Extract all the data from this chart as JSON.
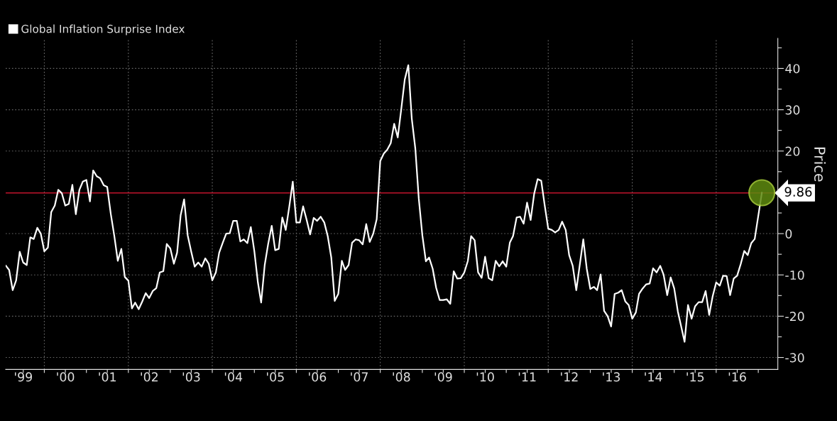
{
  "chart_data": {
    "type": "line",
    "x": [
      "1999-02",
      "1999-03",
      "1999-04",
      "1999-05",
      "1999-06",
      "1999-07",
      "1999-08",
      "1999-09",
      "1999-10",
      "1999-11",
      "1999-12",
      "2000-01",
      "2000-02",
      "2000-03",
      "2000-04",
      "2000-05",
      "2000-06",
      "2000-07",
      "2000-08",
      "2000-09",
      "2000-10",
      "2000-11",
      "2000-12",
      "2001-01",
      "2001-02",
      "2001-03",
      "2001-04",
      "2001-05",
      "2001-06",
      "2001-07",
      "2001-08",
      "2001-09",
      "2001-10",
      "2001-11",
      "2001-12",
      "2002-01",
      "2002-02",
      "2002-03",
      "2002-04",
      "2002-05",
      "2002-06",
      "2002-07",
      "2002-08",
      "2002-09",
      "2002-10",
      "2002-11",
      "2002-12",
      "2003-01",
      "2003-02",
      "2003-03",
      "2003-04",
      "2003-05",
      "2003-06",
      "2003-07",
      "2003-08",
      "2003-09",
      "2003-10",
      "2003-11",
      "2003-12",
      "2004-01",
      "2004-02",
      "2004-03",
      "2004-04",
      "2004-05",
      "2004-06",
      "2004-07",
      "2004-08",
      "2004-09",
      "2004-10",
      "2004-11",
      "2004-12",
      "2005-01",
      "2005-02",
      "2005-03",
      "2005-04",
      "2005-05",
      "2005-06",
      "2005-07",
      "2005-08",
      "2005-09",
      "2005-10",
      "2005-11",
      "2005-12",
      "2006-01",
      "2006-02",
      "2006-03",
      "2006-04",
      "2006-05",
      "2006-06",
      "2006-07",
      "2006-08",
      "2006-09",
      "2006-10",
      "2006-11",
      "2006-12",
      "2007-01",
      "2007-02",
      "2007-03",
      "2007-04",
      "2007-05",
      "2007-06",
      "2007-07",
      "2007-08",
      "2007-09",
      "2007-10",
      "2007-11",
      "2007-12",
      "2008-01",
      "2008-02",
      "2008-03",
      "2008-04",
      "2008-05",
      "2008-06",
      "2008-07",
      "2008-08",
      "2008-09",
      "2008-10",
      "2008-11",
      "2008-12",
      "2009-01",
      "2009-02",
      "2009-03",
      "2009-04",
      "2009-05",
      "2009-06",
      "2009-07",
      "2009-08",
      "2009-09",
      "2009-10",
      "2009-11",
      "2009-12",
      "2010-01",
      "2010-02",
      "2010-03",
      "2010-04",
      "2010-05",
      "2010-06",
      "2010-07",
      "2010-08",
      "2010-09",
      "2010-10",
      "2010-11",
      "2010-12",
      "2011-01",
      "2011-02",
      "2011-03",
      "2011-04",
      "2011-05",
      "2011-06",
      "2011-07",
      "2011-08",
      "2011-09",
      "2011-10",
      "2011-11",
      "2011-12",
      "2012-01",
      "2012-02",
      "2012-03",
      "2012-04",
      "2012-05",
      "2012-06",
      "2012-07",
      "2012-08",
      "2012-09",
      "2012-11",
      "2012-12",
      "2013-01",
      "2013-02",
      "2013-03",
      "2013-04",
      "2013-05",
      "2013-06",
      "2013-07",
      "2013-08",
      "2013-09",
      "2013-10",
      "2013-11",
      "2013-12",
      "2014-01",
      "2014-02",
      "2014-03",
      "2014-04",
      "2014-05",
      "2014-06",
      "2014-07",
      "2014-08",
      "2014-09",
      "2014-10",
      "2014-11",
      "2014-12",
      "2015-01",
      "2015-02",
      "2015-04",
      "2015-05",
      "2015-06",
      "2015-07",
      "2015-08",
      "2015-09",
      "2015-10",
      "2015-11",
      "2015-12",
      "2016-01",
      "2016-02",
      "2016-03",
      "2016-04",
      "2016-05",
      "2016-06",
      "2016-07",
      "2016-08",
      "2016-09",
      "2016-10",
      "2016-11",
      "2016-12",
      "2017-02"
    ],
    "series": [
      {
        "name": "Global Inflation Surprise Index",
        "color": "#ffffff",
        "values": [
          -7.8,
          -8.8,
          -13.7,
          -11.3,
          -4.4,
          -7.0,
          -7.6,
          -0.9,
          -1.3,
          1.4,
          0,
          -4.3,
          -3.4,
          5.2,
          6.8,
          10.6,
          9.8,
          6.8,
          7.2,
          11.8,
          4.7,
          10.6,
          12.6,
          13.0,
          7.8,
          15.3,
          13.9,
          13.4,
          11.7,
          11.3,
          4.8,
          -0.6,
          -6.6,
          -3.7,
          -10.5,
          -11.4,
          -18.1,
          -16.7,
          -18.3,
          -16.5,
          -14.4,
          -15.6,
          -13.9,
          -13.2,
          -9.4,
          -9.1,
          -2.5,
          -3.6,
          -7.3,
          -4.6,
          4.5,
          8.3,
          -0.4,
          -4.3,
          -8.0,
          -7.0,
          -8.0,
          -6.0,
          -7.3,
          -11.3,
          -9.4,
          -4.6,
          -2.2,
          0,
          0.1,
          3.1,
          3.1,
          -1.9,
          -1.4,
          -2.3,
          1.6,
          -4.3,
          -11.9,
          -16.7,
          -7.6,
          -2.5,
          1.9,
          -4.0,
          -3.7,
          3.9,
          0.9,
          6.6,
          12.6,
          2.7,
          2.7,
          6.6,
          3.3,
          -0.2,
          3.8,
          3.1,
          4.1,
          2.7,
          -0.6,
          -5.8,
          -16.3,
          -14.6,
          -6.6,
          -8.8,
          -7.6,
          -2.2,
          -1.4,
          -1.6,
          -2.6,
          2.3,
          -2.0,
          0,
          3.5,
          17.6,
          19.4,
          20.3,
          21.9,
          26.6,
          23.3,
          30.0,
          37.3,
          40.8,
          27.9,
          20.6,
          8.5,
          -0.4,
          -6.7,
          -5.8,
          -8.5,
          -13.1,
          -16.1,
          -16.1,
          -15.9,
          -17.0,
          -9.1,
          -10.9,
          -10.8,
          -9.4,
          -6.6,
          -0.6,
          -1.6,
          -9.4,
          -10.7,
          -5.6,
          -10.8,
          -11.3,
          -6.6,
          -7.9,
          -6.7,
          -8.0,
          -2.2,
          -0.6,
          3.9,
          4.1,
          2.4,
          7.5,
          3.3,
          9.7,
          13.2,
          12.8,
          6.9,
          1.2,
          0.9,
          0.3,
          0.9,
          2.9,
          0.9,
          -5.2,
          -7.8,
          -13.7,
          -1.4,
          -8.5,
          -13.4,
          -12.9,
          -13.7,
          -9.9,
          -18.7,
          -20.0,
          -22.5,
          -14.6,
          -14.3,
          -13.7,
          -16.4,
          -17.3,
          -20.6,
          -19.1,
          -14.6,
          -13.3,
          -12.3,
          -12.1,
          -8.4,
          -9.4,
          -7.8,
          -10.0,
          -14.9,
          -10.6,
          -13.3,
          -18.8,
          -26.2,
          -17.3,
          -20.6,
          -17.6,
          -16.6,
          -16.6,
          -13.9,
          -19.7,
          -15.2,
          -11.8,
          -12.6,
          -10.2,
          -10.3,
          -14.9,
          -10.9,
          -10.2,
          -7.4,
          -4.2,
          -5.2,
          -2.3,
          -1.3,
          9.9
        ]
      }
    ],
    "xlim": [
      "1999-01-30",
      "2017-06-20"
    ],
    "xticks": [
      {
        "value": "2000-01-01",
        "label": null
      },
      {
        "value": "2001-01-01",
        "label": null
      },
      {
        "value": "2002-01-01",
        "label": null
      },
      {
        "value": "2003-01-01",
        "label": null
      },
      {
        "value": "2004-01-01",
        "label": null
      },
      {
        "value": "2005-01-01",
        "label": null
      },
      {
        "value": "2006-01-01",
        "label": null
      },
      {
        "value": "2007-01-01",
        "label": null
      },
      {
        "value": "2008-01-01",
        "label": null
      },
      {
        "value": "2009-01-01",
        "label": null
      },
      {
        "value": "2010-01-01",
        "label": null
      },
      {
        "value": "2011-01-01",
        "label": null
      },
      {
        "value": "2012-01-01",
        "label": null
      },
      {
        "value": "2013-01-01",
        "label": null
      },
      {
        "value": "2014-01-01",
        "label": null
      },
      {
        "value": "2015-01-01",
        "label": null
      },
      {
        "value": "2016-01-01",
        "label": null
      },
      {
        "value": "2017-01-01",
        "label": null
      },
      {
        "value": "1999-07-02",
        "label": "'99"
      },
      {
        "value": "2000-07-02",
        "label": "'00"
      },
      {
        "value": "2001-07-02",
        "label": "'01"
      },
      {
        "value": "2002-07-02",
        "label": "'02"
      },
      {
        "value": "2003-07-02",
        "label": "'03"
      },
      {
        "value": "2004-07-02",
        "label": "'04"
      },
      {
        "value": "2005-07-02",
        "label": "'05"
      },
      {
        "value": "2006-07-02",
        "label": "'06"
      },
      {
        "value": "2007-07-02",
        "label": "'07"
      },
      {
        "value": "2008-07-02",
        "label": "'08"
      },
      {
        "value": "2009-07-02",
        "label": "'09"
      },
      {
        "value": "2010-07-02",
        "label": "'10"
      },
      {
        "value": "2011-07-02",
        "label": "'11"
      },
      {
        "value": "2012-07-02",
        "label": "'12"
      },
      {
        "value": "2013-07-02",
        "label": "'13"
      },
      {
        "value": "2014-07-02",
        "label": "'14"
      },
      {
        "value": "2015-07-02",
        "label": "'15"
      },
      {
        "value": "2016-07-02",
        "label": "'16"
      }
    ],
    "ylim": [
      -32.9,
      47.3
    ],
    "yticks": [
      -30,
      -20,
      -10,
      0,
      {
        "value": 10,
        "label": null
      },
      20,
      30,
      40,
      {
        "value": -25,
        "label": null
      },
      {
        "value": -15,
        "label": null
      },
      {
        "value": -5,
        "label": null
      },
      {
        "value": 5,
        "label": null
      },
      {
        "value": 15,
        "label": null
      },
      {
        "value": 25,
        "label": null
      },
      {
        "value": 35,
        "label": null
      },
      {
        "value": 45,
        "label": null
      }
    ],
    "ylabel": "Price",
    "ref_lines": [
      {
        "axis": "y",
        "value": 9.86,
        "label": "9.86",
        "color": "#c0142c"
      }
    ],
    "grid": true,
    "legend": "top left",
    "marker": "none",
    "line_style": "solid"
  }
}
